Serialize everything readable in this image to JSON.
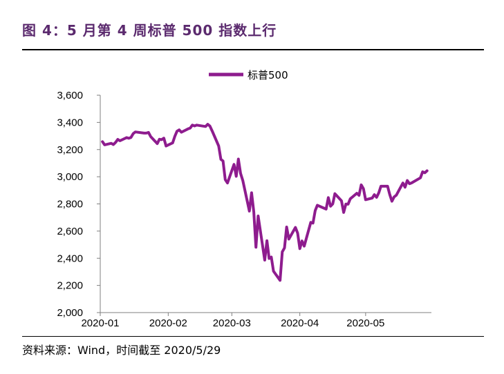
{
  "figure": {
    "title": "图 4：5 月第 4 周标普 500 指数上行",
    "source": "资料来源：Wind，时间截至 2020/5/29"
  },
  "chart_data": {
    "type": "line",
    "legend_position": "top-center",
    "grid": false,
    "ylim": [
      2000,
      3600
    ],
    "yticks": [
      "2,000",
      "2,200",
      "2,400",
      "2,600",
      "2,800",
      "3,000",
      "3,200",
      "3,400",
      "3,600"
    ],
    "xticks": [
      "2020-01",
      "2020-02",
      "2020-03",
      "2020-04",
      "2020-05"
    ],
    "colors": {
      "series": "#8e1c8e"
    },
    "series": [
      {
        "name": "标普500",
        "x": [
          "2020-01-02",
          "2020-01-03",
          "2020-01-06",
          "2020-01-07",
          "2020-01-08",
          "2020-01-09",
          "2020-01-10",
          "2020-01-13",
          "2020-01-14",
          "2020-01-15",
          "2020-01-16",
          "2020-01-17",
          "2020-01-21",
          "2020-01-22",
          "2020-01-23",
          "2020-01-24",
          "2020-01-27",
          "2020-01-28",
          "2020-01-29",
          "2020-01-30",
          "2020-01-31",
          "2020-02-03",
          "2020-02-04",
          "2020-02-05",
          "2020-02-06",
          "2020-02-07",
          "2020-02-10",
          "2020-02-11",
          "2020-02-12",
          "2020-02-13",
          "2020-02-14",
          "2020-02-18",
          "2020-02-19",
          "2020-02-20",
          "2020-02-21",
          "2020-02-24",
          "2020-02-25",
          "2020-02-26",
          "2020-02-27",
          "2020-02-28",
          "2020-03-02",
          "2020-03-03",
          "2020-03-04",
          "2020-03-05",
          "2020-03-06",
          "2020-03-09",
          "2020-03-10",
          "2020-03-11",
          "2020-03-12",
          "2020-03-13",
          "2020-03-16",
          "2020-03-17",
          "2020-03-18",
          "2020-03-19",
          "2020-03-20",
          "2020-03-23",
          "2020-03-24",
          "2020-03-25",
          "2020-03-26",
          "2020-03-27",
          "2020-03-30",
          "2020-03-31",
          "2020-04-01",
          "2020-04-02",
          "2020-04-03",
          "2020-04-06",
          "2020-04-07",
          "2020-04-08",
          "2020-04-09",
          "2020-04-13",
          "2020-04-14",
          "2020-04-15",
          "2020-04-16",
          "2020-04-17",
          "2020-04-20",
          "2020-04-21",
          "2020-04-22",
          "2020-04-23",
          "2020-04-24",
          "2020-04-27",
          "2020-04-28",
          "2020-04-29",
          "2020-04-30",
          "2020-05-01",
          "2020-05-04",
          "2020-05-05",
          "2020-05-06",
          "2020-05-07",
          "2020-05-08",
          "2020-05-11",
          "2020-05-12",
          "2020-05-13",
          "2020-05-14",
          "2020-05-15",
          "2020-05-18",
          "2020-05-19",
          "2020-05-20",
          "2020-05-21",
          "2020-05-22",
          "2020-05-26",
          "2020-05-27",
          "2020-05-28",
          "2020-05-29"
        ],
        "values": [
          3258,
          3235,
          3246,
          3237,
          3253,
          3275,
          3265,
          3288,
          3283,
          3289,
          3317,
          3330,
          3321,
          3321,
          3326,
          3295,
          3244,
          3276,
          3273,
          3284,
          3226,
          3249,
          3298,
          3335,
          3345,
          3328,
          3352,
          3358,
          3380,
          3374,
          3380,
          3370,
          3386,
          3373,
          3338,
          3226,
          3128,
          3116,
          2979,
          2954,
          3091,
          3003,
          3130,
          3024,
          2972,
          2747,
          2882,
          2741,
          2481,
          2711,
          2386,
          2529,
          2398,
          2409,
          2305,
          2237,
          2447,
          2476,
          2630,
          2541,
          2627,
          2585,
          2471,
          2527,
          2489,
          2664,
          2659,
          2750,
          2790,
          2762,
          2846,
          2783,
          2800,
          2875,
          2823,
          2737,
          2799,
          2798,
          2837,
          2878,
          2863,
          2940,
          2912,
          2831,
          2843,
          2868,
          2848,
          2882,
          2930,
          2930,
          2870,
          2820,
          2852,
          2864,
          2954,
          2923,
          2972,
          2949,
          2955,
          2992,
          3036,
          3029,
          3044
        ]
      }
    ]
  }
}
